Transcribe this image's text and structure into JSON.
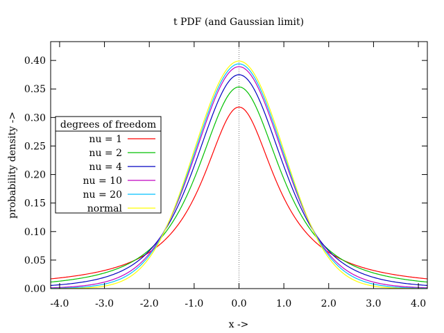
{
  "chart_data": {
    "type": "line",
    "title": "t PDF (and Gaussian limit)",
    "xlabel": "x ->",
    "ylabel": "probability density ->",
    "xlim": [
      -4.2,
      4.2
    ],
    "ylim": [
      0.0,
      0.433
    ],
    "xticks": [
      -4.0,
      -3.0,
      -2.0,
      -1.0,
      0.0,
      1.0,
      2.0,
      3.0,
      4.0
    ],
    "xtick_labels": [
      "-4.0",
      "-3.0",
      "-2.0",
      "-1.0",
      "0.0",
      "1.0",
      "2.0",
      "3.0",
      "4.0"
    ],
    "yticks": [
      0.0,
      0.05,
      0.1,
      0.15,
      0.2,
      0.25,
      0.3,
      0.35,
      0.4
    ],
    "ytick_labels": [
      "0.00",
      "0.05",
      "0.10",
      "0.15",
      "0.20",
      "0.25",
      "0.30",
      "0.35",
      "0.40"
    ],
    "vertical_marker_x": 0.0,
    "legend": {
      "title": "degrees of freedom",
      "placement": "left-middle"
    },
    "series": [
      {
        "name": "nu = 1",
        "nu": 1,
        "color": "#ff0000"
      },
      {
        "name": "nu = 2",
        "nu": 2,
        "color": "#00c000"
      },
      {
        "name": "nu = 4",
        "nu": 4,
        "color": "#0000c0"
      },
      {
        "name": "nu = 10",
        "nu": 10,
        "color": "#c000c0"
      },
      {
        "name": "nu = 20",
        "nu": 20,
        "color": "#00c0ff"
      },
      {
        "name": "normal",
        "nu": null,
        "color": "#ffff00"
      }
    ],
    "sample_peaks": {
      "nu = 1": 0.318,
      "nu = 2": 0.354,
      "nu = 4": 0.375,
      "nu = 10": 0.389,
      "nu = 20": 0.394,
      "normal": 0.399
    }
  }
}
